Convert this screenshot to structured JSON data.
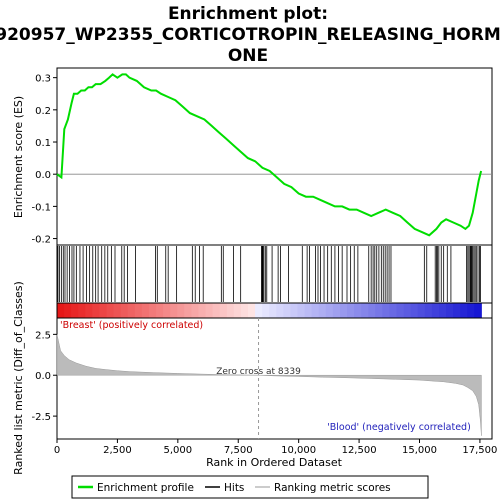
{
  "chart_data": {
    "type": "line",
    "title_line1": "Enrichment plot:",
    "title_line2": "920957_WP2355_CORTICOTROPIN_RELEASING_HORM",
    "title_line3": "ONE",
    "top_panel": {
      "ylabel": "Enrichment score (ES)",
      "ylim": [
        -0.22,
        0.33
      ],
      "yticks": [
        -0.2,
        -0.1,
        0.0,
        0.1,
        0.2,
        0.3
      ],
      "ytick_labels": [
        "-0.2",
        "-0.1",
        "0.0",
        "0.1",
        "0.2",
        "0.3"
      ],
      "series_color": "#00dd00",
      "es_curve": {
        "x": [
          0,
          180,
          300,
          450,
          600,
          700,
          850,
          1000,
          1150,
          1300,
          1450,
          1600,
          1800,
          2000,
          2150,
          2300,
          2500,
          2700,
          2850,
          3000,
          3300,
          3600,
          3900,
          4100,
          4300,
          4600,
          4900,
          5200,
          5500,
          5800,
          6100,
          6400,
          6700,
          7000,
          7300,
          7600,
          7900,
          8200,
          8500,
          8800,
          9100,
          9400,
          9700,
          10000,
          10300,
          10600,
          10900,
          11200,
          11500,
          11800,
          12100,
          12400,
          12700,
          13000,
          13300,
          13600,
          13900,
          14200,
          14500,
          14800,
          15100,
          15400,
          15700,
          15900,
          16100,
          16400,
          16700,
          16900,
          17050,
          17200,
          17350,
          17450,
          17550
        ],
        "y": [
          0.0,
          -0.01,
          0.14,
          0.17,
          0.22,
          0.25,
          0.25,
          0.26,
          0.26,
          0.27,
          0.27,
          0.28,
          0.28,
          0.29,
          0.3,
          0.31,
          0.3,
          0.31,
          0.31,
          0.3,
          0.29,
          0.27,
          0.26,
          0.26,
          0.25,
          0.24,
          0.23,
          0.21,
          0.19,
          0.18,
          0.17,
          0.15,
          0.13,
          0.11,
          0.09,
          0.07,
          0.05,
          0.04,
          0.02,
          0.01,
          -0.01,
          -0.03,
          -0.04,
          -0.06,
          -0.07,
          -0.07,
          -0.08,
          -0.09,
          -0.1,
          -0.1,
          -0.11,
          -0.11,
          -0.12,
          -0.13,
          -0.12,
          -0.11,
          -0.12,
          -0.13,
          -0.15,
          -0.17,
          -0.18,
          -0.19,
          -0.17,
          -0.15,
          -0.14,
          -0.15,
          -0.16,
          -0.17,
          -0.16,
          -0.12,
          -0.06,
          -0.02,
          0.01
        ]
      }
    },
    "hits": [
      40,
      100,
      180,
      260,
      330,
      420,
      520,
      620,
      700,
      800,
      950,
      1080,
      1220,
      1350,
      1480,
      1600,
      1700,
      1850,
      1980,
      2100,
      2250,
      2400,
      2680,
      2780,
      2920,
      3250,
      4080,
      4150,
      4500,
      4600,
      4950,
      5600,
      5720,
      5900,
      6050,
      6800,
      6880,
      7300,
      7600,
      8460,
      8490,
      8520,
      8560,
      8620,
      8680,
      8900,
      9150,
      9250,
      9580,
      10150,
      10350,
      10450,
      10700,
      10800,
      10900,
      11050,
      11200,
      11350,
      11500,
      11650,
      11800,
      12000,
      12150,
      12300,
      12450,
      12900,
      13000,
      13080,
      13150,
      13230,
      13320,
      13420,
      13500,
      13580,
      13660,
      13740,
      13820,
      15200,
      15300,
      15650,
      15700,
      15750,
      15800,
      15900,
      16000,
      16150,
      16300,
      16950,
      17000,
      17050,
      17100,
      17130,
      17160,
      17200,
      17250,
      17300,
      17350,
      17420,
      17480,
      17520
    ],
    "bottom_panel": {
      "ylabel": "Ranked list metric (Diff_of_Classes)",
      "ylim": [
        -3.9,
        3.5
      ],
      "yticks": [
        -2.5,
        0.0,
        2.5
      ],
      "ytick_labels": [
        "-2.5",
        "0.0",
        "2.5"
      ],
      "metric": {
        "x": [
          0,
          150,
          300,
          500,
          800,
          1200,
          1600,
          2000,
          2500,
          3000,
          4000,
          5000,
          6000,
          7000,
          8339,
          9000,
          10000,
          11000,
          12000,
          13000,
          14000,
          15000,
          15500,
          16000,
          16500,
          16800,
          17000,
          17200,
          17350,
          17450,
          17520,
          17560
        ],
        "y": [
          2.5,
          1.5,
          1.2,
          0.95,
          0.75,
          0.55,
          0.42,
          0.35,
          0.28,
          0.22,
          0.16,
          0.11,
          0.07,
          0.03,
          0.0,
          -0.04,
          -0.08,
          -0.12,
          -0.16,
          -0.2,
          -0.25,
          -0.3,
          -0.35,
          -0.4,
          -0.5,
          -0.6,
          -0.75,
          -0.95,
          -1.3,
          -1.8,
          -2.8,
          -3.7
        ]
      },
      "zero_cross_label": "Zero cross at 8339",
      "zero_cross_x": 8339,
      "pos_label": "'Breast' (positively correlated)",
      "neg_label": "'Blood' (negatively correlated)",
      "pos_color": "#cc0000",
      "neg_color": "#2222bb"
    },
    "xlabel": "Rank in Ordered Dataset",
    "xlim": [
      0,
      18000
    ],
    "xticks": [
      0,
      2500,
      5000,
      7500,
      10000,
      12500,
      15000,
      17500
    ],
    "xtick_labels": [
      "0",
      "2,500",
      "5,000",
      "7,500",
      "10,000",
      "12,500",
      "15,000",
      "17,500"
    ],
    "n_genes": 17560,
    "legend": {
      "items": [
        {
          "label": "Enrichment profile",
          "color": "#00dd00"
        },
        {
          "label": "Hits",
          "color": "#000000"
        },
        {
          "label": "Ranking metric scores",
          "color": "#bbbbbb"
        }
      ]
    }
  }
}
